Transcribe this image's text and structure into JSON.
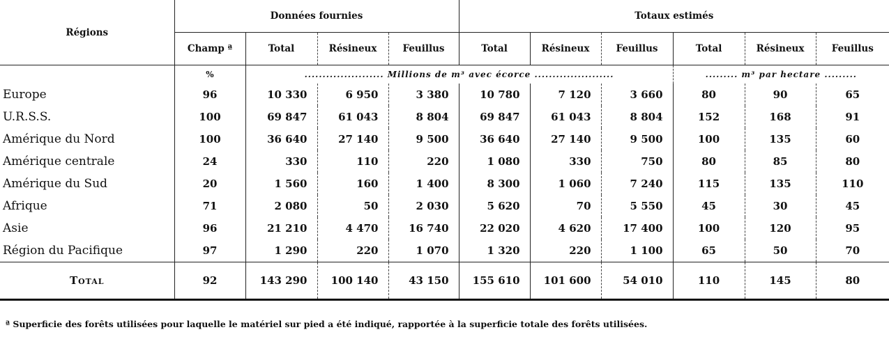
{
  "header": {
    "regions": "Régions",
    "group1": "Données fournies",
    "group2": "Totaux estimés",
    "cols": [
      "Champ ª",
      "Total",
      "Résineux",
      "Feuillus",
      "Total",
      "Résineux",
      "Feuillus",
      "Total",
      "Résineux",
      "Feuillus"
    ],
    "unit_pct": "%",
    "unit_vol": "...................... Millions de m³ avec écorce ......................",
    "unit_ha": "......... m³ par hectare ........."
  },
  "rows": [
    {
      "region": "Europe",
      "v": [
        "96",
        "10 330",
        "6 950",
        "3 380",
        "10 780",
        "7 120",
        "3 660",
        "80",
        "90",
        "65"
      ]
    },
    {
      "region": "U.R.S.S.",
      "v": [
        "100",
        "69 847",
        "61 043",
        "8 804",
        "69 847",
        "61 043",
        "8 804",
        "152",
        "168",
        "91"
      ]
    },
    {
      "region": "Amérique du Nord",
      "v": [
        "100",
        "36 640",
        "27 140",
        "9 500",
        "36 640",
        "27 140",
        "9 500",
        "100",
        "135",
        "60"
      ]
    },
    {
      "region": "Amérique centrale",
      "v": [
        "24",
        "330",
        "110",
        "220",
        "1 080",
        "330",
        "750",
        "80",
        "85",
        "80"
      ]
    },
    {
      "region": "Amérique du Sud",
      "v": [
        "20",
        "1 560",
        "160",
        "1 400",
        "8 300",
        "1 060",
        "7 240",
        "115",
        "135",
        "110"
      ]
    },
    {
      "region": "Afrique",
      "v": [
        "71",
        "2 080",
        "50",
        "2 030",
        "5 620",
        "70",
        "5 550",
        "45",
        "30",
        "45"
      ]
    },
    {
      "region": "Asie",
      "v": [
        "96",
        "21 210",
        "4 470",
        "16 740",
        "22 020",
        "4 620",
        "17 400",
        "100",
        "120",
        "95"
      ]
    },
    {
      "region": "Région du Pacifique",
      "v": [
        "97",
        "1 290",
        "220",
        "1 070",
        "1 320",
        "220",
        "1 100",
        "65",
        "50",
        "70"
      ]
    }
  ],
  "total": {
    "region": "Total",
    "v": [
      "92",
      "143 290",
      "100 140",
      "43 150",
      "155 610",
      "101 600",
      "54 010",
      "110",
      "145",
      "80"
    ]
  },
  "footnote": "ª Superficie des forêts utilisées pour laquelle le matériel sur pied a été indiqué, rapportée à la superficie totale des forêts utilisées."
}
